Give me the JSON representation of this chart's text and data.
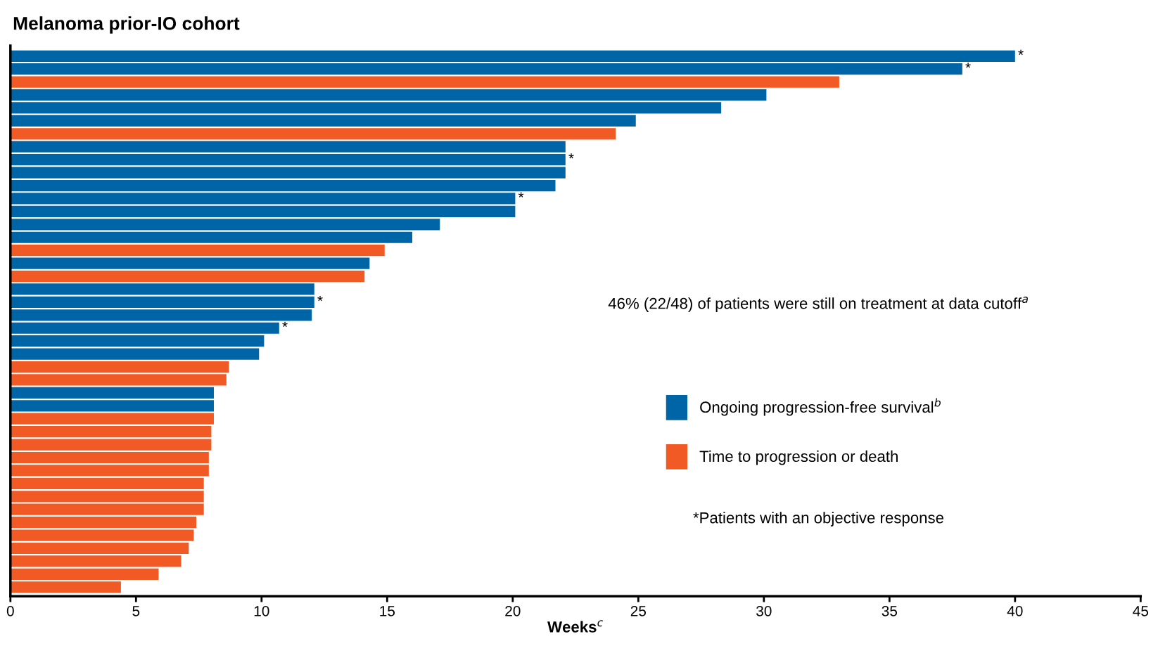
{
  "chart_data": {
    "type": "bar",
    "orientation": "horizontal",
    "title": "Melanoma prior-IO cohort",
    "xlabel": "Weeks$^{c}$",
    "categories": [
      null,
      null,
      null,
      null,
      null,
      null,
      null,
      null,
      null,
      null,
      null,
      null,
      null,
      null,
      null,
      null,
      null,
      null,
      null,
      null,
      null,
      null,
      null,
      null,
      null,
      null,
      null,
      null,
      null,
      null,
      null,
      null,
      null,
      null,
      null,
      null,
      null,
      null,
      null,
      null,
      null,
      null
    ],
    "series": [
      {
        "name": "Ongoing progression-free survival$^{b}$",
        "color": "#0065a6",
        "values": [
          40.0,
          37.9,
          null,
          30.1,
          28.3,
          24.9,
          null,
          22.1,
          22.1,
          22.1,
          21.7,
          20.1,
          20.1,
          17.1,
          16.0,
          null,
          14.3,
          null,
          12.1,
          12.1,
          12.0,
          10.7,
          10.1,
          9.9,
          null,
          null,
          8.1,
          8.1,
          null,
          null,
          null,
          null,
          null,
          null,
          null,
          null,
          null,
          null,
          null,
          null,
          null,
          null
        ],
        "value_labels": [
          "*",
          "*",
          null,
          null,
          null,
          null,
          null,
          null,
          "*",
          null,
          null,
          "*",
          null,
          null,
          null,
          null,
          null,
          null,
          null,
          "*",
          null,
          "*",
          null,
          null,
          null,
          null,
          null,
          null,
          null,
          null,
          null,
          null,
          null,
          null,
          null,
          null,
          null,
          null,
          null,
          null,
          null,
          null
        ]
      },
      {
        "name": "Time to progression or death",
        "color": "#f15a24",
        "values": [
          null,
          null,
          33.0,
          null,
          null,
          null,
          24.1,
          null,
          null,
          null,
          null,
          null,
          null,
          null,
          null,
          14.9,
          null,
          14.1,
          null,
          null,
          null,
          null,
          null,
          null,
          8.7,
          8.6,
          null,
          null,
          8.1,
          8.0,
          8.0,
          7.9,
          7.9,
          7.7,
          7.7,
          7.7,
          7.4,
          7.3,
          7.1,
          6.8,
          5.9,
          4.4
        ]
      }
    ],
    "xlim": [
      0,
      45
    ],
    "xticks": [
      0,
      5,
      10,
      15,
      20,
      25,
      30,
      35,
      40,
      45
    ],
    "annotations": [
      "46% (22/48) of patients were still on treatment at data cutoff$^{a}$",
      "*Patients with an objective response"
    ],
    "legend": "right",
    "grid": false
  }
}
